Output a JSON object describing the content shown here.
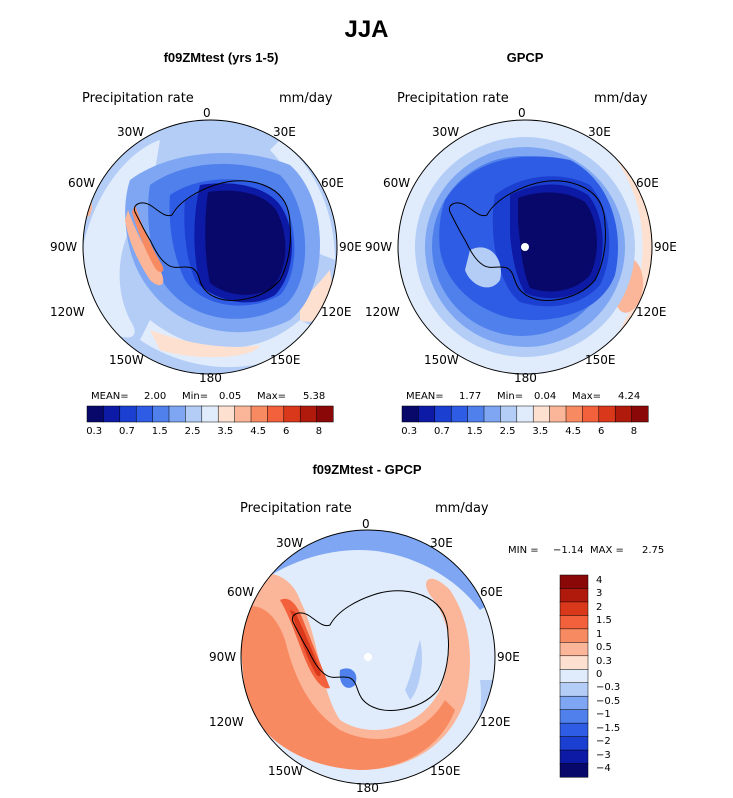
{
  "title": "JJA",
  "panels": [
    {
      "title": "f09ZMtest (yrs 1-5)",
      "variable": "Precipitation rate",
      "units": "mm/day",
      "stats": [
        {
          "label": "MEAN=",
          "value": "2.00"
        },
        {
          "label": "Min=",
          "value": "0.05"
        },
        {
          "label": "Max=",
          "value": "5.38"
        }
      ]
    },
    {
      "title": "GPCP",
      "variable": "Precipitation rate",
      "units": "mm/day",
      "stats": [
        {
          "label": "MEAN=",
          "value": "1.77"
        },
        {
          "label": "Min=",
          "value": "0.04"
        },
        {
          "label": "Max=",
          "value": "4.24"
        }
      ]
    },
    {
      "title": "f09ZMtest - GPCP",
      "variable": "Precipitation rate",
      "units": "mm/day",
      "stats": [
        {
          "label": "MIN =",
          "value": "−1.14"
        },
        {
          "label": "MAX =",
          "value": "2.75"
        }
      ]
    }
  ],
  "lon_labels": [
    "0",
    "30E",
    "60E",
    "90E",
    "120E",
    "150E",
    "180",
    "150W",
    "120W",
    "90W",
    "60W",
    "30W"
  ],
  "abs_colorbar": {
    "colors": [
      "#08086b",
      "#0c1aa5",
      "#1b3fd0",
      "#2f5ce4",
      "#4f80ec",
      "#7ea6f2",
      "#b3cdf7",
      "#e0ecfb",
      "#fde0cf",
      "#fbb598",
      "#f88a62",
      "#f2603c",
      "#d9381a",
      "#b01a0c",
      "#8a0808"
    ],
    "tick_labels": [
      "0.3",
      "0.7",
      "1.5",
      "2.5",
      "3.5",
      "4.5",
      "6",
      "8"
    ]
  },
  "diff_colorbar": {
    "colors": [
      "#8a0808",
      "#b01a0c",
      "#d9381a",
      "#f2603c",
      "#f88a62",
      "#fbb598",
      "#fde0cf",
      "#e0ecfb",
      "#b3cdf7",
      "#7ea6f2",
      "#4f80ec",
      "#2f5ce4",
      "#1b3fd0",
      "#0c1aa5",
      "#08086b"
    ],
    "tick_labels": [
      "4",
      "3",
      "2",
      "1.5",
      "1",
      "0.5",
      "0.3",
      "0",
      "−0.3",
      "−0.5",
      "−1",
      "−1.5",
      "−2",
      "−3",
      "−4"
    ]
  }
}
